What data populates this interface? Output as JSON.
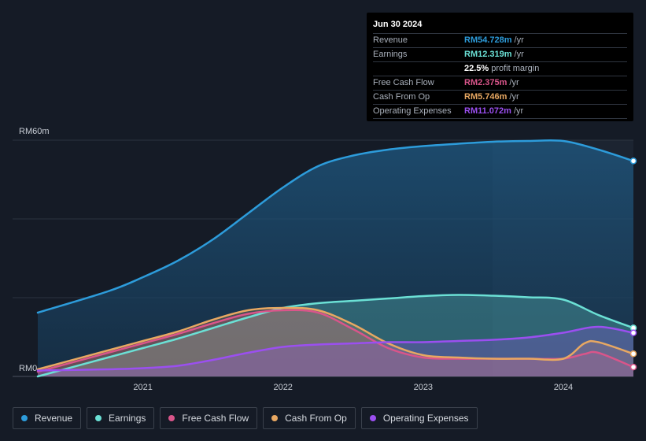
{
  "tooltip": {
    "date": "Jun 30 2024",
    "rows": [
      {
        "label": "Revenue",
        "value": "RM54.728m",
        "unit": "/yr",
        "color": "#2d9cdb"
      },
      {
        "label": "Earnings",
        "value": "RM12.319m",
        "unit": "/yr",
        "color": "#6be0d5"
      },
      {
        "label": "",
        "value": "22.5%",
        "unit": "profit margin",
        "color": "#ffffff"
      },
      {
        "label": "Free Cash Flow",
        "value": "RM2.375m",
        "unit": "/yr",
        "color": "#d9558a"
      },
      {
        "label": "Cash From Op",
        "value": "RM5.746m",
        "unit": "/yr",
        "color": "#e8a862"
      },
      {
        "label": "Operating Expenses",
        "value": "RM11.072m",
        "unit": "/yr",
        "color": "#9b4ff0"
      }
    ]
  },
  "legend": [
    {
      "label": "Revenue",
      "color": "#2d9cdb"
    },
    {
      "label": "Earnings",
      "color": "#6be0d5"
    },
    {
      "label": "Free Cash Flow",
      "color": "#d9558a"
    },
    {
      "label": "Cash From Op",
      "color": "#e8a862"
    },
    {
      "label": "Operating Expenses",
      "color": "#9b4ff0"
    }
  ],
  "chart_data": {
    "type": "area",
    "title": "",
    "xlabel": "",
    "ylabel": "",
    "y_unit": "RM m",
    "ylim": [
      0,
      60
    ],
    "xlim": [
      2020.25,
      2024.5
    ],
    "y_tick_labels": [
      {
        "value": 60,
        "label": "RM60m"
      },
      {
        "value": 0,
        "label": "RM0"
      }
    ],
    "x_ticks": [
      2021,
      2022,
      2023,
      2024
    ],
    "x_tick_labels": [
      "2021",
      "2022",
      "2023",
      "2024"
    ],
    "highlight_from": 2023.5,
    "series": [
      {
        "name": "Revenue",
        "color": "#2d9cdb",
        "x": [
          2020.25,
          2020.75,
          2021.0,
          2021.25,
          2021.5,
          2021.75,
          2022.0,
          2022.25,
          2022.5,
          2022.75,
          2023.0,
          2023.25,
          2023.5,
          2023.75,
          2024.0,
          2024.25,
          2024.5
        ],
        "values": [
          16.2,
          21.6,
          25.2,
          29.4,
          34.8,
          41.4,
          48.0,
          53.4,
          56.1,
          57.6,
          58.5,
          59.1,
          59.6,
          59.8,
          59.8,
          57.6,
          54.728
        ]
      },
      {
        "name": "Earnings",
        "color": "#6be0d5",
        "x": [
          2020.25,
          2020.75,
          2021.0,
          2021.25,
          2021.5,
          2021.75,
          2022.0,
          2022.25,
          2022.5,
          2022.75,
          2023.0,
          2023.25,
          2023.5,
          2023.75,
          2024.0,
          2024.25,
          2024.5
        ],
        "values": [
          0.0,
          4.8,
          7.2,
          9.6,
          12.3,
          15.0,
          17.4,
          18.6,
          19.2,
          19.8,
          20.4,
          20.7,
          20.5,
          20.1,
          19.5,
          15.6,
          12.319
        ]
      },
      {
        "name": "Free Cash Flow",
        "color": "#d9558a",
        "x": [
          2020.25,
          2020.75,
          2021.0,
          2021.25,
          2021.5,
          2021.75,
          2022.0,
          2022.25,
          2022.5,
          2022.75,
          2023.0,
          2023.25,
          2023.5,
          2023.75,
          2024.0,
          2024.15,
          2024.25,
          2024.5
        ],
        "values": [
          1.2,
          6.0,
          8.4,
          10.8,
          13.5,
          15.9,
          16.8,
          16.2,
          12.0,
          7.2,
          4.8,
          4.5,
          4.5,
          4.5,
          4.5,
          5.7,
          6.0,
          2.375
        ]
      },
      {
        "name": "Cash From Op",
        "color": "#e8a862",
        "x": [
          2020.25,
          2020.75,
          2021.0,
          2021.25,
          2021.5,
          2021.75,
          2022.0,
          2022.25,
          2022.5,
          2022.75,
          2023.0,
          2023.25,
          2023.5,
          2023.75,
          2024.0,
          2024.15,
          2024.25,
          2024.5
        ],
        "values": [
          1.8,
          6.6,
          9.0,
          11.4,
          14.4,
          16.8,
          17.4,
          16.8,
          13.2,
          8.4,
          5.4,
          4.8,
          4.5,
          4.5,
          4.5,
          8.4,
          8.7,
          5.746
        ]
      },
      {
        "name": "Operating Expenses",
        "color": "#9b4ff0",
        "x": [
          2020.25,
          2020.75,
          2021.0,
          2021.25,
          2021.5,
          2021.75,
          2022.0,
          2022.25,
          2022.5,
          2022.75,
          2023.0,
          2023.25,
          2023.5,
          2023.75,
          2024.0,
          2024.25,
          2024.5
        ],
        "values": [
          1.5,
          1.8,
          2.1,
          2.7,
          4.2,
          6.0,
          7.5,
          8.1,
          8.4,
          8.7,
          8.7,
          9.0,
          9.3,
          9.9,
          11.1,
          12.6,
          11.072
        ]
      }
    ]
  }
}
